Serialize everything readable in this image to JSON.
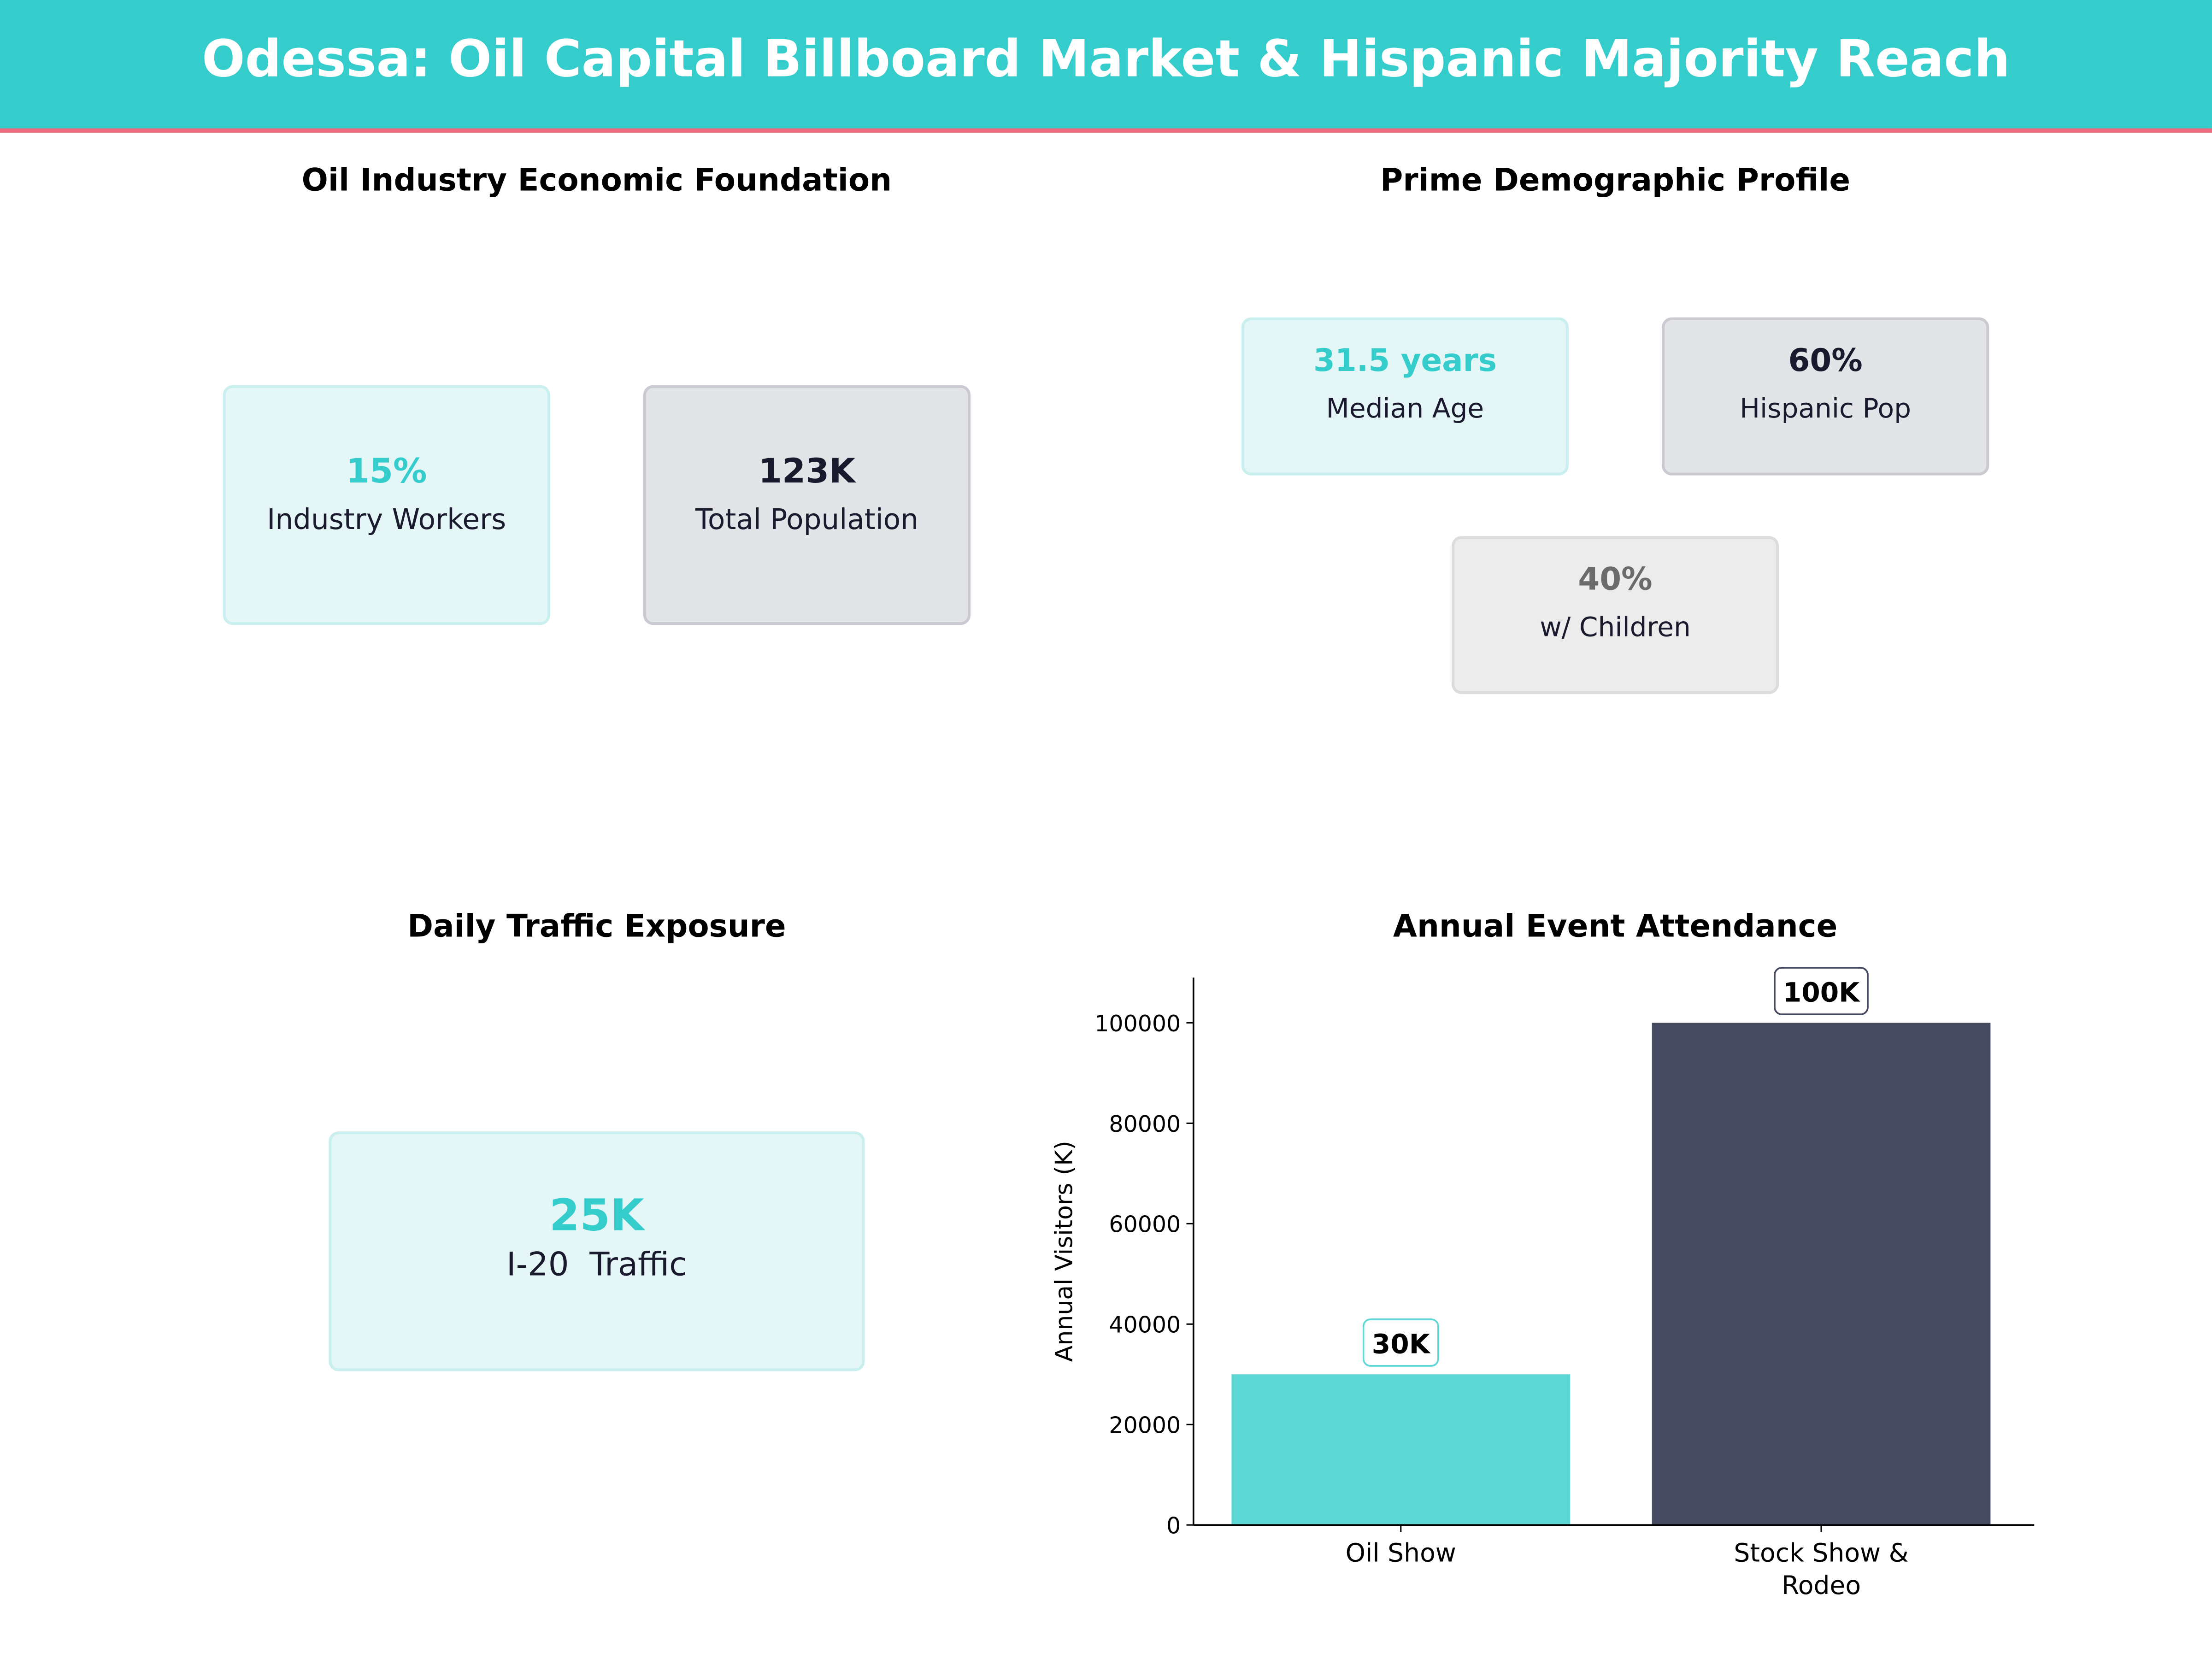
{
  "header": {
    "title": "Odessa: Oil Capital Billboard Market & Hispanic Majority Reach"
  },
  "panels": {
    "economic": {
      "title": "Oil Industry Economic Foundation",
      "cards": [
        {
          "value": "15%",
          "label": "Industry Workers"
        },
        {
          "value": "123K",
          "label": "Total Population"
        }
      ]
    },
    "demographic": {
      "title": "Prime Demographic Profile",
      "cards": [
        {
          "value": "31.5 years",
          "label": "Median Age"
        },
        {
          "value": "60%",
          "label": "Hispanic Pop"
        },
        {
          "value": "40%",
          "label": "w/ Children"
        }
      ]
    },
    "traffic": {
      "title": "Daily Traffic Exposure",
      "cards": [
        {
          "value": "25K",
          "label": "I-20  Traffic"
        }
      ]
    }
  },
  "colors": {
    "teal": "#35cccc",
    "bar1": "#5dd8d5",
    "bar2": "#454a60",
    "dark": "#1a1a2e",
    "gray": "#6b6b6b",
    "accent": "#ef6a7e"
  },
  "chart_data": {
    "type": "bar",
    "title": "Annual Event Attendance",
    "categories": [
      "Oil Show",
      "Stock Show & Rodeo"
    ],
    "category_lines": [
      [
        "Oil Show"
      ],
      [
        "Stock Show &",
        "Rodeo"
      ]
    ],
    "values": [
      30000,
      100000
    ],
    "data_labels": [
      "30K",
      "100K"
    ],
    "ylabel": "Annual Visitors (K)",
    "xlabel": "",
    "ylim": [
      0,
      109000
    ],
    "yticks": [
      0,
      20000,
      40000,
      60000,
      80000,
      100000
    ],
    "ytick_labels": [
      "0",
      "20000",
      "40000",
      "60000",
      "80000",
      "100000"
    ],
    "grid": false
  }
}
